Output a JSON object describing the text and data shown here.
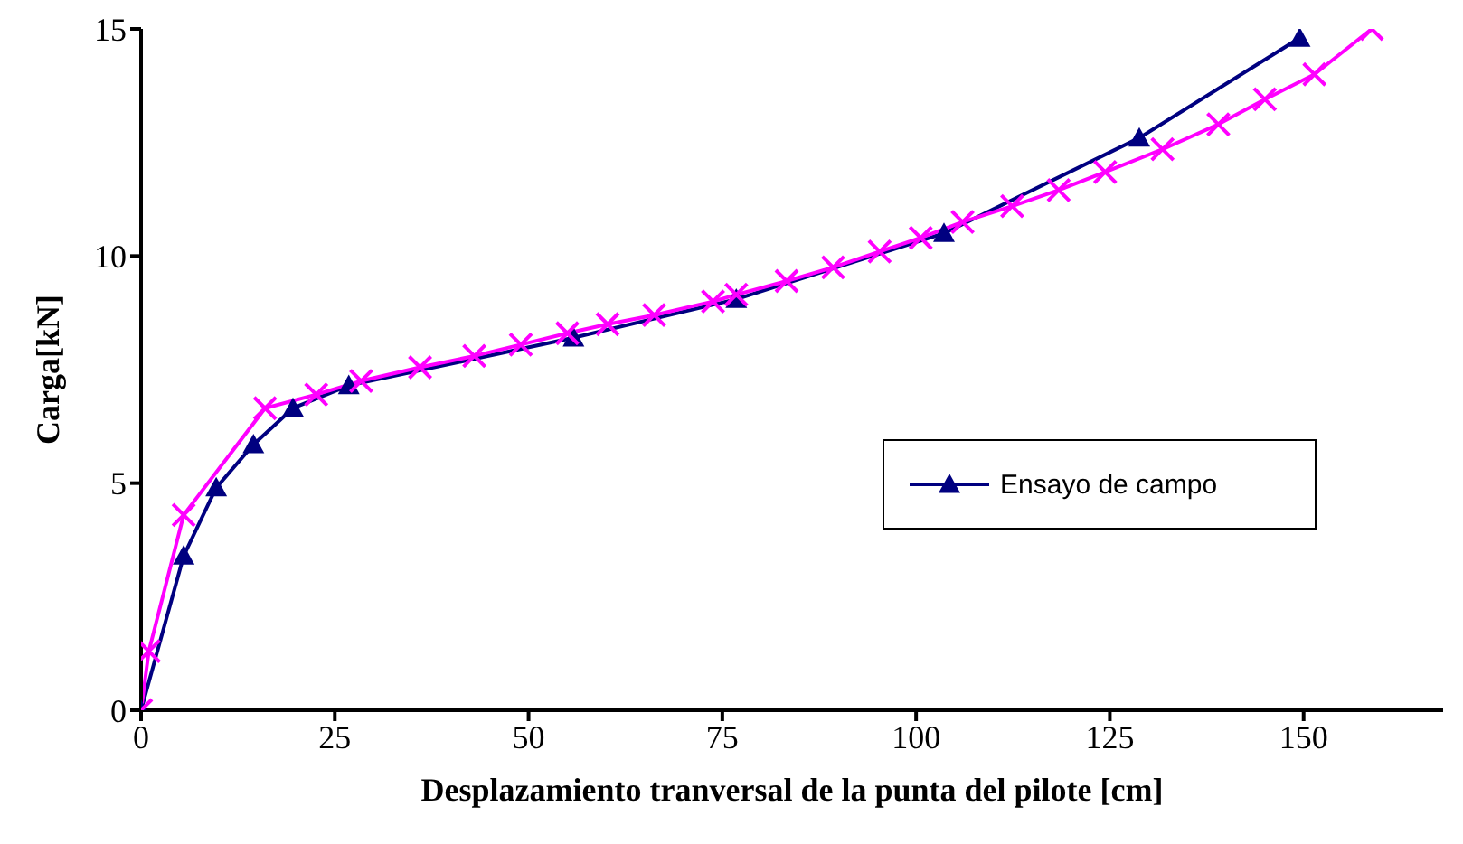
{
  "chart_data": {
    "type": "line",
    "xlabel": "Desplazamiento tranversal de la punta del pilote [cm]",
    "ylabel": "Carga[kN]",
    "xlim": [
      0,
      168
    ],
    "xticks": [
      0,
      25,
      50,
      75,
      100,
      125,
      150
    ],
    "ylim": [
      0,
      15
    ],
    "yticks": [
      0,
      5,
      10,
      15
    ],
    "grid": false,
    "legend": "right",
    "line_style": "solid",
    "series": [
      {
        "name": "Ensayo de campo",
        "color": "#000080",
        "marker": "triangle",
        "x": [
          0,
          5.5,
          9.7,
          14.5,
          19.6,
          26.8,
          55.8,
          76.8,
          103.6,
          128.8,
          149.5
        ],
        "values": [
          0,
          3.4,
          4.9,
          5.85,
          6.65,
          7.15,
          8.2,
          9.05,
          10.5,
          12.6,
          14.8
        ]
      },
      {
        "color": "#ff00ff",
        "marker": "cross",
        "x": [
          0,
          1,
          5.5,
          16,
          22.6,
          28.4,
          36,
          43,
          49,
          55,
          60.2,
          66.2,
          73.8,
          76.8,
          83.3,
          89.3,
          95.3,
          100.6,
          106,
          112.4,
          118.4,
          124.4,
          131.8,
          139,
          145,
          151.4,
          158.8
        ],
        "values": [
          0,
          1.3,
          4.3,
          6.65,
          6.95,
          7.25,
          7.55,
          7.8,
          8.05,
          8.3,
          8.5,
          8.7,
          9.0,
          9.15,
          9.45,
          9.75,
          10.1,
          10.4,
          10.75,
          11.1,
          11.45,
          11.85,
          12.35,
          12.9,
          13.45,
          14.0,
          15.0
        ]
      }
    ]
  }
}
